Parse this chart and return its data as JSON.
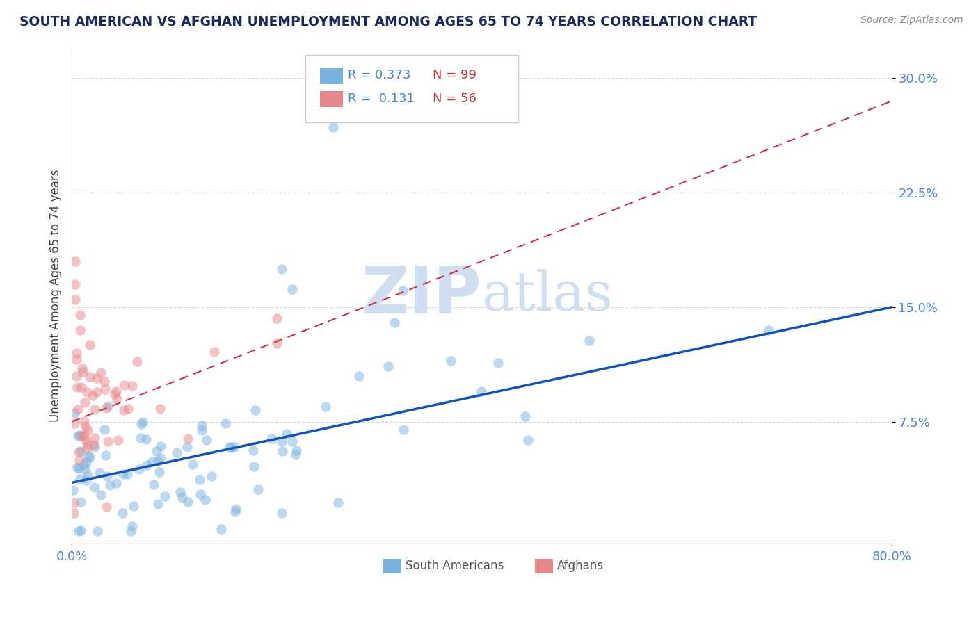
{
  "title": "SOUTH AMERICAN VS AFGHAN UNEMPLOYMENT AMONG AGES 65 TO 74 YEARS CORRELATION CHART",
  "source": "Source: ZipAtlas.com",
  "ylabel": "Unemployment Among Ages 65 to 74 years",
  "xlim": [
    0.0,
    0.8
  ],
  "ylim": [
    -0.005,
    0.32
  ],
  "yticks": [
    0.075,
    0.15,
    0.225,
    0.3
  ],
  "ytick_labels": [
    "7.5%",
    "15.0%",
    "22.5%",
    "30.0%"
  ],
  "xtick_labels": [
    "0.0%",
    "80.0%"
  ],
  "blue_R": 0.373,
  "blue_N": 99,
  "pink_R": 0.131,
  "pink_N": 56,
  "blue_color": "#7ab3e0",
  "pink_color": "#e8878a",
  "blue_line_color": "#1155bb",
  "pink_line_color": "#cc3355",
  "title_color": "#1a2a5e",
  "tick_color": "#4a86c8",
  "watermark_color": "#d0dff0",
  "grid_color": "#d0d0d0",
  "background_color": "#ffffff",
  "blue_line_x0": 0.0,
  "blue_line_y0": 0.035,
  "blue_line_x1": 0.8,
  "blue_line_y1": 0.15,
  "pink_line_x0": 0.0,
  "pink_line_y0": 0.075,
  "pink_line_x1": 0.8,
  "pink_line_y1": 0.285
}
